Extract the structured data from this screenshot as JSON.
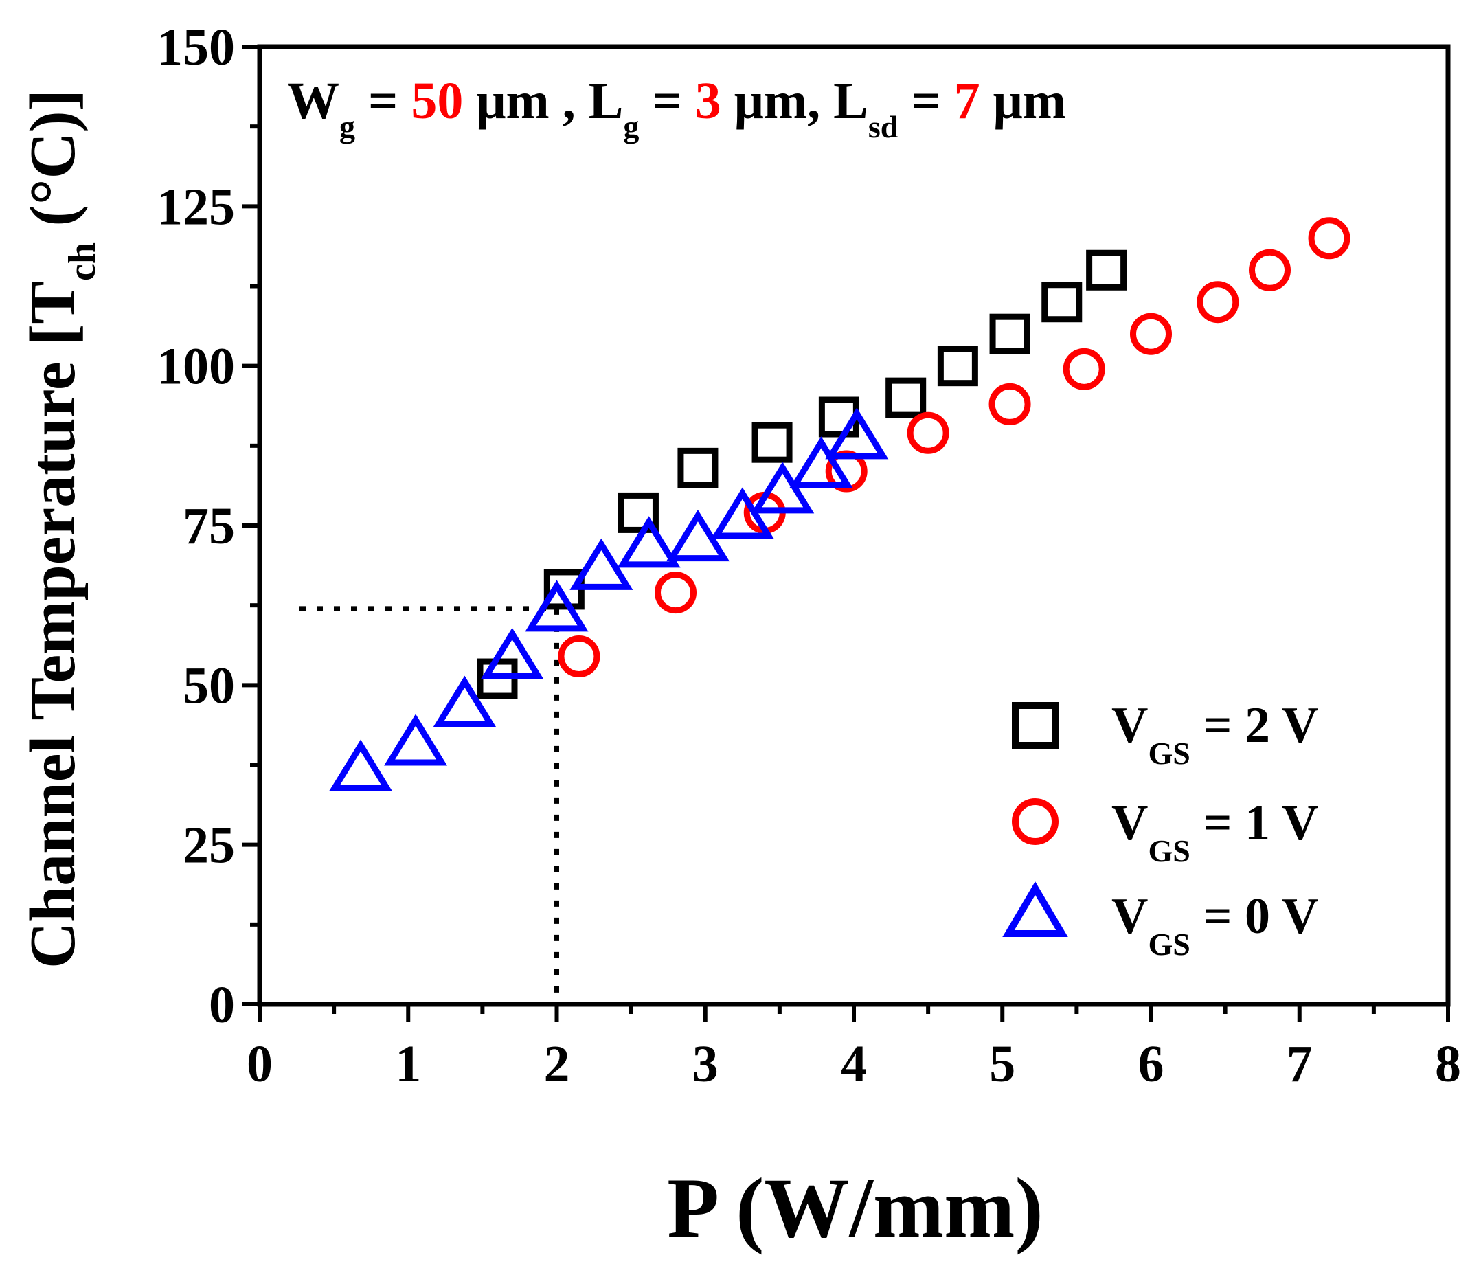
{
  "chart_data": {
    "type": "scatter",
    "title": "",
    "xlabel": "P (W/mm)",
    "ylabel": "Channel Temperature [T_ch (°C)]",
    "ylabel_parts": {
      "main": "Channel Temperature [T",
      "sub": "ch",
      "tail": " (°C)]"
    },
    "xlim": [
      0,
      8
    ],
    "ylim": [
      0,
      150
    ],
    "xticks": [
      "0",
      "1",
      "2",
      "3",
      "4",
      "5",
      "6",
      "7",
      "8"
    ],
    "yticks": [
      "0",
      "25",
      "50",
      "75",
      "100",
      "125",
      "150"
    ],
    "grid": false,
    "legend_position": "bottom-right",
    "annotation": {
      "wg_label": "W",
      "wg_sub": "g",
      "wg_eq": " = ",
      "wg_value": "50",
      "wg_unit": " μm , ",
      "lg_label": "L",
      "lg_sub": "g",
      "lg_eq": " =  ",
      "lg_value": "3",
      "lg_unit": " μm, ",
      "lsd_label": "L",
      "lsd_sub": "sd",
      "lsd_eq": " = ",
      "lsd_value": "7",
      "lsd_unit": " μm",
      "highlight_color": "#ff0000"
    },
    "reference_point": {
      "x": 2.0,
      "y": 62
    },
    "series": [
      {
        "name": "V_GS = 2 V",
        "legend": {
          "prefix": "V",
          "sub": "GS",
          "suffix": " = 2 V"
        },
        "marker": "square",
        "color": "#000000",
        "x": [
          1.6,
          2.05,
          2.55,
          2.95,
          3.45,
          3.9,
          4.35,
          4.7,
          5.05,
          5.4,
          5.7
        ],
        "y": [
          51,
          65,
          77,
          84,
          88,
          92,
          95,
          100,
          105,
          110,
          115
        ]
      },
      {
        "name": "V_GS = 1 V",
        "legend": {
          "prefix": "V",
          "sub": "GS",
          "suffix": " = 1 V"
        },
        "marker": "circle",
        "color": "#ff0000",
        "x": [
          2.15,
          2.8,
          3.4,
          3.95,
          4.5,
          5.05,
          5.55,
          6.0,
          6.45,
          6.8,
          7.2
        ],
        "y": [
          54.5,
          64.5,
          77,
          83.5,
          89.5,
          94,
          99.5,
          105,
          110,
          115,
          120
        ]
      },
      {
        "name": "V_GS = 0 V",
        "legend": {
          "prefix": "V",
          "sub": "GS",
          "suffix": " = 0 V"
        },
        "marker": "triangle",
        "color": "#0000ff",
        "x": [
          0.68,
          1.05,
          1.38,
          1.7,
          2.0,
          2.3,
          2.62,
          2.95,
          3.25,
          3.52,
          3.78,
          4.02
        ],
        "y": [
          37,
          41,
          47,
          54.5,
          62,
          68.5,
          72,
          73,
          76.5,
          80.5,
          84.5,
          89
        ]
      }
    ]
  }
}
